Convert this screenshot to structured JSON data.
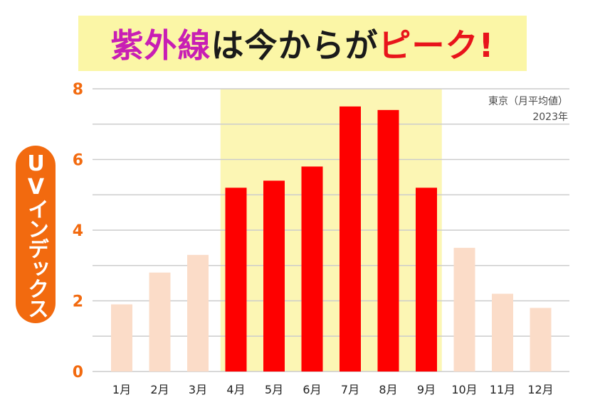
{
  "title": {
    "part1": "紫外線",
    "part2": "は今からが",
    "part3": "ピーク!"
  },
  "ylabel": "UVインデックス",
  "note": {
    "line1": "東京（月平均値）",
    "line2": "2023年"
  },
  "colors": {
    "highlight_band": "#fcf6b4",
    "peak_bar": "#fe0000",
    "normal_bar": "#fbdcc8",
    "tick_label": "#f26a0f",
    "grid": "#cccccc"
  },
  "chart_data": {
    "type": "bar",
    "categories": [
      "1月",
      "2月",
      "3月",
      "4月",
      "5月",
      "6月",
      "7月",
      "8月",
      "9月",
      "10月",
      "11月",
      "12月"
    ],
    "values": [
      1.9,
      2.8,
      3.3,
      5.2,
      5.4,
      5.8,
      7.5,
      7.4,
      5.2,
      3.5,
      2.2,
      1.8
    ],
    "peak_months": [
      "4月",
      "5月",
      "6月",
      "7月",
      "8月",
      "9月"
    ],
    "ylabel": "UVインデックス",
    "ylim": [
      0,
      8
    ],
    "yticks": [
      "0",
      "2",
      "4",
      "6",
      "8"
    ],
    "grid": true
  }
}
